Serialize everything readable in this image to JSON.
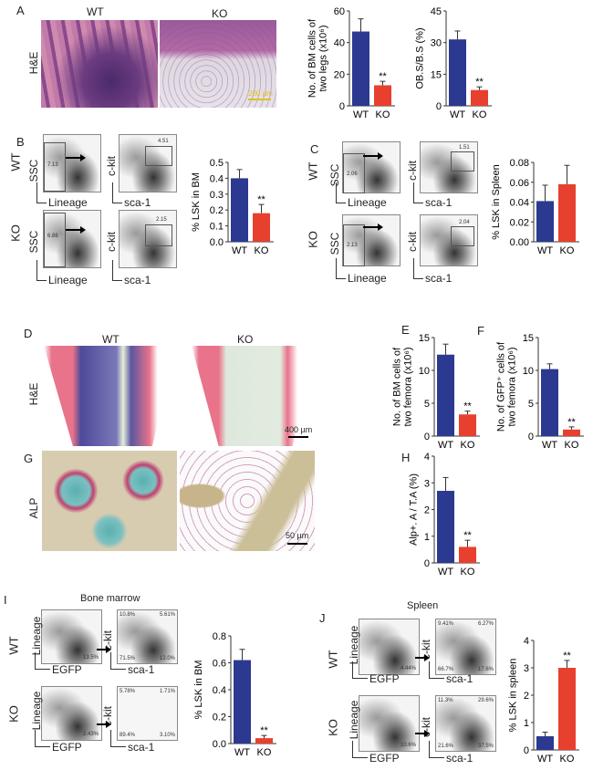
{
  "panels": {
    "A": "A",
    "B": "B",
    "C": "C",
    "D": "D",
    "E": "E",
    "F": "F",
    "G": "G",
    "H": "H",
    "I": "I",
    "J": "J"
  },
  "groups": {
    "wt": "WT",
    "ko": "KO"
  },
  "stains": {
    "he": "H&E",
    "alp": "ALP"
  },
  "scalebars": {
    "a": "200 µm",
    "d": "400 µm",
    "g": "50 µm"
  },
  "flow_axes": {
    "ssc": "SSC",
    "lineage": "Lineage",
    "ckit": "c-kit",
    "sca1": "sca-1",
    "egfp": "EGFP"
  },
  "panel_titles": {
    "I": "Bone marrow",
    "J": "Spleen"
  },
  "gates": {
    "B_wt_lin": "7.13",
    "B_wt_lsk": "4.51",
    "B_ko_lin": "6.86",
    "B_ko_lsk": "2.15",
    "C_wt_lin": "2.06",
    "C_wt_lsk": "1.51",
    "C_ko_lin": "2.13",
    "C_ko_lsk": "2.04",
    "I_wt_egfp": "13.5%",
    "I_wt_q": [
      "10.8%",
      "5.61%",
      "71.5%",
      "12.0%"
    ],
    "I_ko_egfp": "2.43%",
    "I_ko_q": [
      "5.78%",
      "1.71%",
      "89.4%",
      "3.10%"
    ],
    "J_wt_egfp": "4.44%",
    "J_wt_q": [
      "9.41%",
      "6.27%",
      "66.7%",
      "17.6%"
    ],
    "J_ko_egfp": "10.6%",
    "J_ko_q": [
      "11.3%",
      "29.6%",
      "21.6%",
      "37.5%"
    ]
  },
  "colors": {
    "wt": "#2b3990",
    "ko": "#e8402f"
  },
  "chart_data": [
    {
      "id": "A1",
      "type": "bar",
      "categories": [
        "WT",
        "KO"
      ],
      "values": [
        47,
        13
      ],
      "errors": [
        8,
        2.5
      ],
      "ylabel": [
        "No. of BM cells of",
        "two legs (x10⁶)"
      ],
      "ylim": [
        0,
        60
      ],
      "ticks": [
        "0",
        "20",
        "40",
        "60"
      ],
      "sig": [
        "",
        "**"
      ]
    },
    {
      "id": "A2",
      "type": "bar",
      "categories": [
        "WT",
        "KO"
      ],
      "values": [
        31.5,
        7.5
      ],
      "errors": [
        4,
        1.5
      ],
      "ylabel": [
        "OB.S/B.S (%)"
      ],
      "ylim": [
        0,
        45
      ],
      "ticks": [
        "0",
        "15",
        "30",
        "45"
      ],
      "sig": [
        "",
        "**"
      ]
    },
    {
      "id": "B",
      "type": "bar",
      "categories": [
        "WT",
        "KO"
      ],
      "values": [
        0.4,
        0.18
      ],
      "errors": [
        0.055,
        0.055
      ],
      "ylabel": [
        "% LSK in BM"
      ],
      "ylim": [
        0,
        0.5
      ],
      "ticks": [
        "0.0",
        "0.1",
        "0.2",
        "0.3",
        "0.4",
        "0.5"
      ],
      "sig": [
        "",
        "**"
      ]
    },
    {
      "id": "C",
      "type": "bar",
      "categories": [
        "WT",
        "KO"
      ],
      "values": [
        0.041,
        0.058
      ],
      "errors": [
        0.016,
        0.019
      ],
      "ylabel": [
        "% LSK in Spleen"
      ],
      "ylim": [
        0,
        0.08
      ],
      "ticks": [
        "0.00",
        "0.02",
        "0.04",
        "0.06",
        "0.08"
      ],
      "sig": [
        "",
        ""
      ]
    },
    {
      "id": "E",
      "type": "bar",
      "categories": [
        "WT",
        "KO"
      ],
      "values": [
        12.4,
        3.3
      ],
      "errors": [
        1.6,
        0.5
      ],
      "ylabel": [
        "No. of BM cells of",
        "two femora (x10⁶)"
      ],
      "ylim": [
        0,
        15
      ],
      "ticks": [
        "0",
        "5",
        "10",
        "15"
      ],
      "sig": [
        "",
        "**"
      ]
    },
    {
      "id": "F",
      "type": "bar",
      "categories": [
        "WT",
        "KO"
      ],
      "values": [
        10.2,
        1.0
      ],
      "errors": [
        0.8,
        0.4
      ],
      "ylabel": [
        "No. of GFP⁺ cells of",
        "two femora (x10⁶)"
      ],
      "ylim": [
        0,
        15
      ],
      "ticks": [
        "0",
        "5",
        "10",
        "15"
      ],
      "sig": [
        "",
        "**"
      ]
    },
    {
      "id": "H",
      "type": "bar",
      "categories": [
        "WT",
        "KO"
      ],
      "values": [
        2.7,
        0.6
      ],
      "errors": [
        0.5,
        0.25
      ],
      "ylabel": [
        "Alp+. A / T.A (%)"
      ],
      "ylim": [
        0,
        4
      ],
      "ticks": [
        "0",
        "1",
        "2",
        "3",
        "4"
      ],
      "sig": [
        "",
        "**"
      ]
    },
    {
      "id": "I",
      "type": "bar",
      "categories": [
        "WT",
        "KO"
      ],
      "values": [
        0.62,
        0.04
      ],
      "errors": [
        0.08,
        0.02
      ],
      "ylabel": [
        "% LSK in BM"
      ],
      "ylim": [
        0,
        0.8
      ],
      "ticks": [
        "0.0",
        "0.2",
        "0.4",
        "0.6",
        "0.8"
      ],
      "sig": [
        "",
        "**"
      ]
    },
    {
      "id": "J",
      "type": "bar",
      "categories": [
        "WT",
        "KO"
      ],
      "values": [
        0.5,
        3.0
      ],
      "errors": [
        0.15,
        0.27
      ],
      "ylabel": [
        "% LSK in spleen"
      ],
      "ylim": [
        0,
        4
      ],
      "ticks": [
        "0",
        "1",
        "2",
        "3",
        "4"
      ],
      "sig": [
        "",
        "**"
      ]
    }
  ]
}
